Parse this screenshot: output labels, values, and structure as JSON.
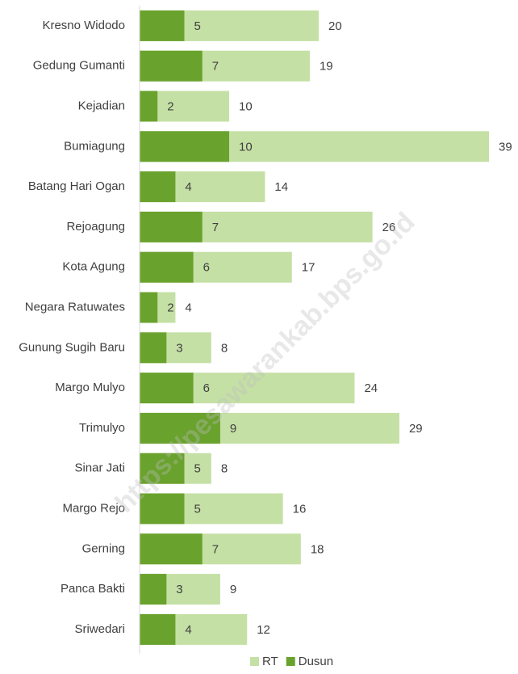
{
  "chart_data": {
    "type": "bar",
    "orientation": "horizontal",
    "overlap": true,
    "categories": [
      "Kresno Widodo",
      "Gedung Gumanti",
      "Kejadian",
      "Bumiagung",
      "Batang Hari Ogan",
      "Rejoagung",
      "Kota Agung",
      "Negara Ratuwates",
      "Gunung Sugih Baru",
      "Margo Mulyo",
      "Trimulyo",
      "Sinar Jati",
      "Margo Rejo",
      "Gerning",
      "Panca Bakti",
      "Sriwedari"
    ],
    "series": [
      {
        "name": "RT",
        "color": "#c5e0a5",
        "values": [
          20,
          19,
          10,
          39,
          14,
          26,
          17,
          4,
          8,
          24,
          29,
          8,
          16,
          18,
          9,
          12
        ]
      },
      {
        "name": "Dusun",
        "color": "#6aa22e",
        "values": [
          5,
          7,
          2,
          10,
          4,
          7,
          6,
          2,
          3,
          6,
          9,
          5,
          5,
          7,
          3,
          4
        ]
      }
    ],
    "xlim": [
      0,
      39
    ],
    "legend": "bottom",
    "watermark": "https://pesawarankab.bps.go.id"
  }
}
